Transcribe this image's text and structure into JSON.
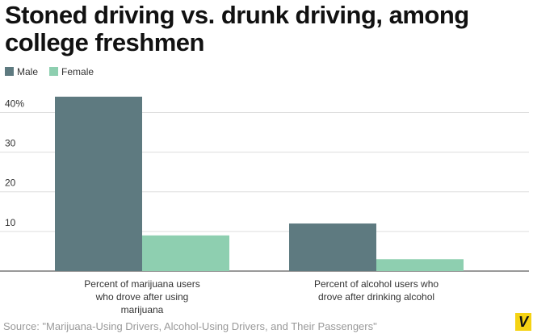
{
  "chart_data": {
    "type": "bar",
    "title": "Stoned driving vs. drunk driving, among college freshmen",
    "categories": [
      "Percent of marijuana users who drove after using marijuana",
      "Percent of alcohol users who drove after drinking alcohol"
    ],
    "series": [
      {
        "name": "Male",
        "color": "#5e7a80",
        "values": [
          44,
          12
        ]
      },
      {
        "name": "Female",
        "color": "#8ecfb0",
        "values": [
          9,
          3
        ]
      }
    ],
    "ylim": [
      0,
      46
    ],
    "yticks": [
      10,
      20,
      30,
      {
        "value": 40,
        "label": "40%"
      }
    ],
    "grid": true,
    "legend": "top-left",
    "source": "Source: \"Marijuana-Using Drivers, Alcohol-Using Drivers, and Their Passengers\"",
    "logo": "V"
  }
}
